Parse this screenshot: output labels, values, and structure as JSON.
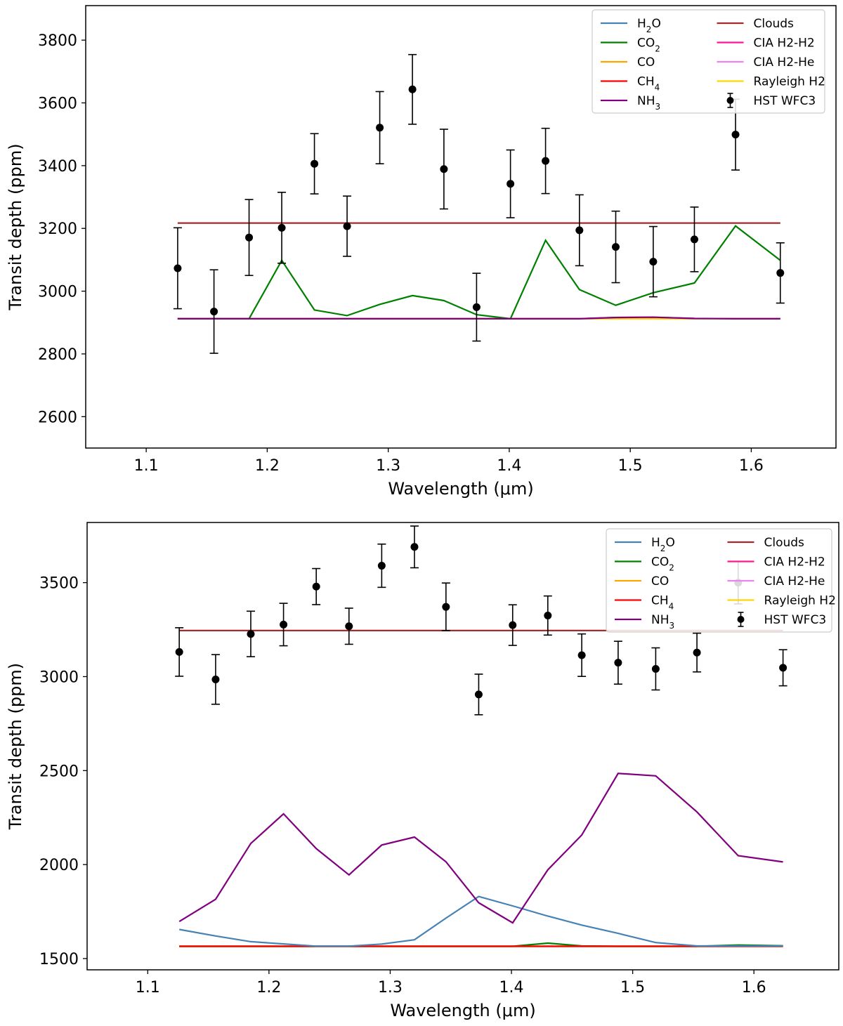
{
  "colors": {
    "H2O": "#4682b4",
    "CO2": "#008000",
    "CO": "#ffa500",
    "CH4": "#ff0000",
    "NH3": "#800080",
    "Clouds": "#a52a2a",
    "CIA H2-H2": "#ff1493",
    "CIA H2-He": "#ee82ee",
    "Rayleigh H2": "#ffd700",
    "HST WFC3": "#000000"
  },
  "chart_data": [
    {
      "type": "line",
      "xlabel": "Wavelength (μm)",
      "ylabel": "Transit depth (ppm)",
      "xlim": [
        1.05,
        1.67
      ],
      "ylim": [
        2500,
        3910
      ],
      "xticks": [
        1.1,
        1.2,
        1.3,
        1.4,
        1.5,
        1.6
      ],
      "yticks": [
        2600,
        2800,
        3000,
        3200,
        3400,
        3600,
        3800
      ],
      "legend_position": "top-right",
      "legend": [
        {
          "key": "H2O",
          "label": "H₂O",
          "kind": "line"
        },
        {
          "key": "CO2",
          "label": "CO₂",
          "kind": "line"
        },
        {
          "key": "CO",
          "label": "CO",
          "kind": "line"
        },
        {
          "key": "CH4",
          "label": "CH₄",
          "kind": "line"
        },
        {
          "key": "NH3",
          "label": "NH₃",
          "kind": "line"
        },
        {
          "key": "Clouds",
          "label": "Clouds",
          "kind": "line"
        },
        {
          "key": "CIA H2-H2",
          "label": "CIA H2-H2",
          "kind": "line"
        },
        {
          "key": "CIA H2-He",
          "label": "CIA H2-He",
          "kind": "line"
        },
        {
          "key": "Rayleigh H2",
          "label": "Rayleigh H2",
          "kind": "line"
        },
        {
          "key": "HST WFC3",
          "label": "HST WFC3",
          "kind": "errorbar"
        }
      ],
      "x": [
        1.126,
        1.156,
        1.185,
        1.212,
        1.239,
        1.266,
        1.293,
        1.32,
        1.346,
        1.373,
        1.401,
        1.43,
        1.458,
        1.488,
        1.519,
        1.553,
        1.587,
        1.624
      ],
      "series": [
        {
          "name": "H2O",
          "values": [
            2912,
            2912,
            2912,
            2912,
            2912,
            2912,
            2912,
            2912,
            2912,
            2912,
            2912,
            2912,
            2912,
            2912,
            2912,
            2912,
            2912,
            2912
          ]
        },
        {
          "name": "CO",
          "values": [
            2912,
            2912,
            2912,
            2912,
            2912,
            2912,
            2912,
            2912,
            2912,
            2912,
            2912,
            2912,
            2912,
            2912,
            2912,
            2912,
            2912,
            2912
          ]
        },
        {
          "name": "CH4",
          "values": [
            2912,
            2912,
            2912,
            2912,
            2912,
            2912,
            2912,
            2912,
            2912,
            2912,
            2912,
            2912,
            2912,
            2912,
            2912,
            2912,
            2912,
            2912
          ]
        },
        {
          "name": "CIA H2-H2",
          "values": [
            2912,
            2912,
            2912,
            2912,
            2912,
            2912,
            2912,
            2912,
            2912,
            2912,
            2912,
            2912,
            2912,
            2916,
            2917,
            2913,
            2912,
            2912
          ]
        },
        {
          "name": "CIA H2-He",
          "values": [
            2912,
            2912,
            2912,
            2912,
            2912,
            2912,
            2912,
            2912,
            2912,
            2912,
            2912,
            2912,
            2912,
            2914,
            2915,
            2912,
            2912,
            2912
          ]
        },
        {
          "name": "Rayleigh H2",
          "values": [
            2912,
            2912,
            2912,
            2912,
            2912,
            2912,
            2912,
            2912,
            2912,
            2912,
            2912,
            2912,
            2912,
            2912,
            2912,
            2912,
            2912,
            2912
          ]
        },
        {
          "name": "Clouds",
          "values": [
            3217,
            3217,
            3217,
            3217,
            3217,
            3217,
            3217,
            3217,
            3217,
            3217,
            3217,
            3217,
            3217,
            3217,
            3217,
            3217,
            3217,
            3217
          ]
        },
        {
          "name": "CO2",
          "values": [
            2912,
            2912,
            2912,
            3098,
            2940,
            2922,
            2958,
            2986,
            2970,
            2925,
            2912,
            3162,
            3005,
            2955,
            2995,
            3026,
            3208,
            3098
          ]
        },
        {
          "name": "NH3",
          "values": [
            2912,
            2912,
            2912,
            2912,
            2912,
            2912,
            2912,
            2912,
            2912,
            2912,
            2912,
            2912,
            2912,
            2916,
            2917,
            2913,
            2912,
            2912
          ]
        }
      ],
      "observations": {
        "name": "HST WFC3",
        "values": [
          3073,
          2935,
          3171,
          3202,
          3406,
          3207,
          3521,
          3643,
          3389,
          2949,
          3342,
          3415,
          3194,
          3141,
          3094,
          3165,
          3499,
          3058
        ],
        "errors": [
          129,
          133,
          121,
          113,
          96,
          96,
          115,
          111,
          127,
          108,
          108,
          104,
          113,
          114,
          112,
          103,
          113,
          96
        ]
      }
    },
    {
      "type": "line",
      "xlabel": "Wavelength (μm)",
      "ylabel": "Transit depth (ppm)",
      "xlim": [
        1.05,
        1.67
      ],
      "ylim": [
        1440,
        3820
      ],
      "xticks": [
        1.1,
        1.2,
        1.3,
        1.4,
        1.5,
        1.6
      ],
      "yticks": [
        1500,
        2000,
        2500,
        3000,
        3500
      ],
      "legend_position": "top-right",
      "legend": [
        {
          "key": "H2O",
          "label": "H₂O",
          "kind": "line"
        },
        {
          "key": "CO2",
          "label": "CO₂",
          "kind": "line"
        },
        {
          "key": "CO",
          "label": "CO",
          "kind": "line"
        },
        {
          "key": "CH4",
          "label": "CH₄",
          "kind": "line"
        },
        {
          "key": "NH3",
          "label": "NH₃",
          "kind": "line"
        },
        {
          "key": "Clouds",
          "label": "Clouds",
          "kind": "line"
        },
        {
          "key": "CIA H2-H2",
          "label": "CIA H2-H2",
          "kind": "line"
        },
        {
          "key": "CIA H2-He",
          "label": "CIA H2-He",
          "kind": "line"
        },
        {
          "key": "Rayleigh H2",
          "label": "Rayleigh H2",
          "kind": "line"
        },
        {
          "key": "HST WFC3",
          "label": "HST WFC3",
          "kind": "errorbar"
        }
      ],
      "x": [
        1.126,
        1.156,
        1.185,
        1.212,
        1.239,
        1.266,
        1.293,
        1.32,
        1.346,
        1.373,
        1.401,
        1.43,
        1.458,
        1.488,
        1.519,
        1.553,
        1.587,
        1.624
      ],
      "series": [
        {
          "name": "CO",
          "values": [
            1565,
            1565,
            1565,
            1565,
            1565,
            1565,
            1565,
            1565,
            1565,
            1565,
            1565,
            1565,
            1565,
            1565,
            1565,
            1565,
            1565,
            1565
          ]
        },
        {
          "name": "CIA H2-H2",
          "values": [
            1565,
            1565,
            1565,
            1565,
            1565,
            1565,
            1565,
            1565,
            1565,
            1565,
            1565,
            1565,
            1565,
            1565,
            1565,
            1565,
            1565,
            1565
          ]
        },
        {
          "name": "CIA H2-He",
          "values": [
            1565,
            1565,
            1565,
            1565,
            1565,
            1565,
            1565,
            1565,
            1565,
            1565,
            1565,
            1565,
            1565,
            1565,
            1565,
            1565,
            1565,
            1565
          ]
        },
        {
          "name": "Rayleigh H2",
          "values": [
            1565,
            1565,
            1565,
            1565,
            1565,
            1565,
            1565,
            1565,
            1565,
            1565,
            1565,
            1565,
            1565,
            1565,
            1565,
            1565,
            1565,
            1565
          ]
        },
        {
          "name": "CO2",
          "values": [
            1565,
            1565,
            1565,
            1565,
            1565,
            1565,
            1565,
            1565,
            1565,
            1565,
            1565,
            1582,
            1567,
            1565,
            1565,
            1565,
            1572,
            1568
          ]
        },
        {
          "name": "CH4",
          "values": [
            1565,
            1565,
            1565,
            1565,
            1565,
            1565,
            1565,
            1565,
            1565,
            1565,
            1565,
            1565,
            1565,
            1565,
            1565,
            1565,
            1565,
            1565
          ]
        },
        {
          "name": "H2O",
          "values": [
            1655,
            1620,
            1590,
            1578,
            1566,
            1566,
            1577,
            1600,
            1715,
            1830,
            1780,
            1726,
            1678,
            1634,
            1585,
            1567,
            1567,
            1567
          ]
        },
        {
          "name": "Clouds",
          "values": [
            3245,
            3245,
            3245,
            3245,
            3245,
            3245,
            3245,
            3245,
            3245,
            3245,
            3245,
            3245,
            3245,
            3245,
            3245,
            3245,
            3245,
            3245
          ]
        },
        {
          "name": "NH3",
          "values": [
            1697,
            1815,
            2112,
            2270,
            2085,
            1945,
            2104,
            2146,
            2015,
            1797,
            1690,
            1972,
            2157,
            2485,
            2472,
            2280,
            2047,
            2014
          ]
        }
      ],
      "observations": {
        "name": "HST WFC3",
        "values": [
          3131,
          2985,
          3227,
          3277,
          3479,
          3268,
          3590,
          3690,
          3371,
          2905,
          3274,
          3325,
          3114,
          3074,
          3041,
          3128,
          3500,
          3047
        ],
        "errors": [
          129,
          132,
          121,
          113,
          96,
          96,
          115,
          111,
          127,
          108,
          108,
          104,
          113,
          114,
          112,
          103,
          113,
          96
        ]
      }
    }
  ]
}
